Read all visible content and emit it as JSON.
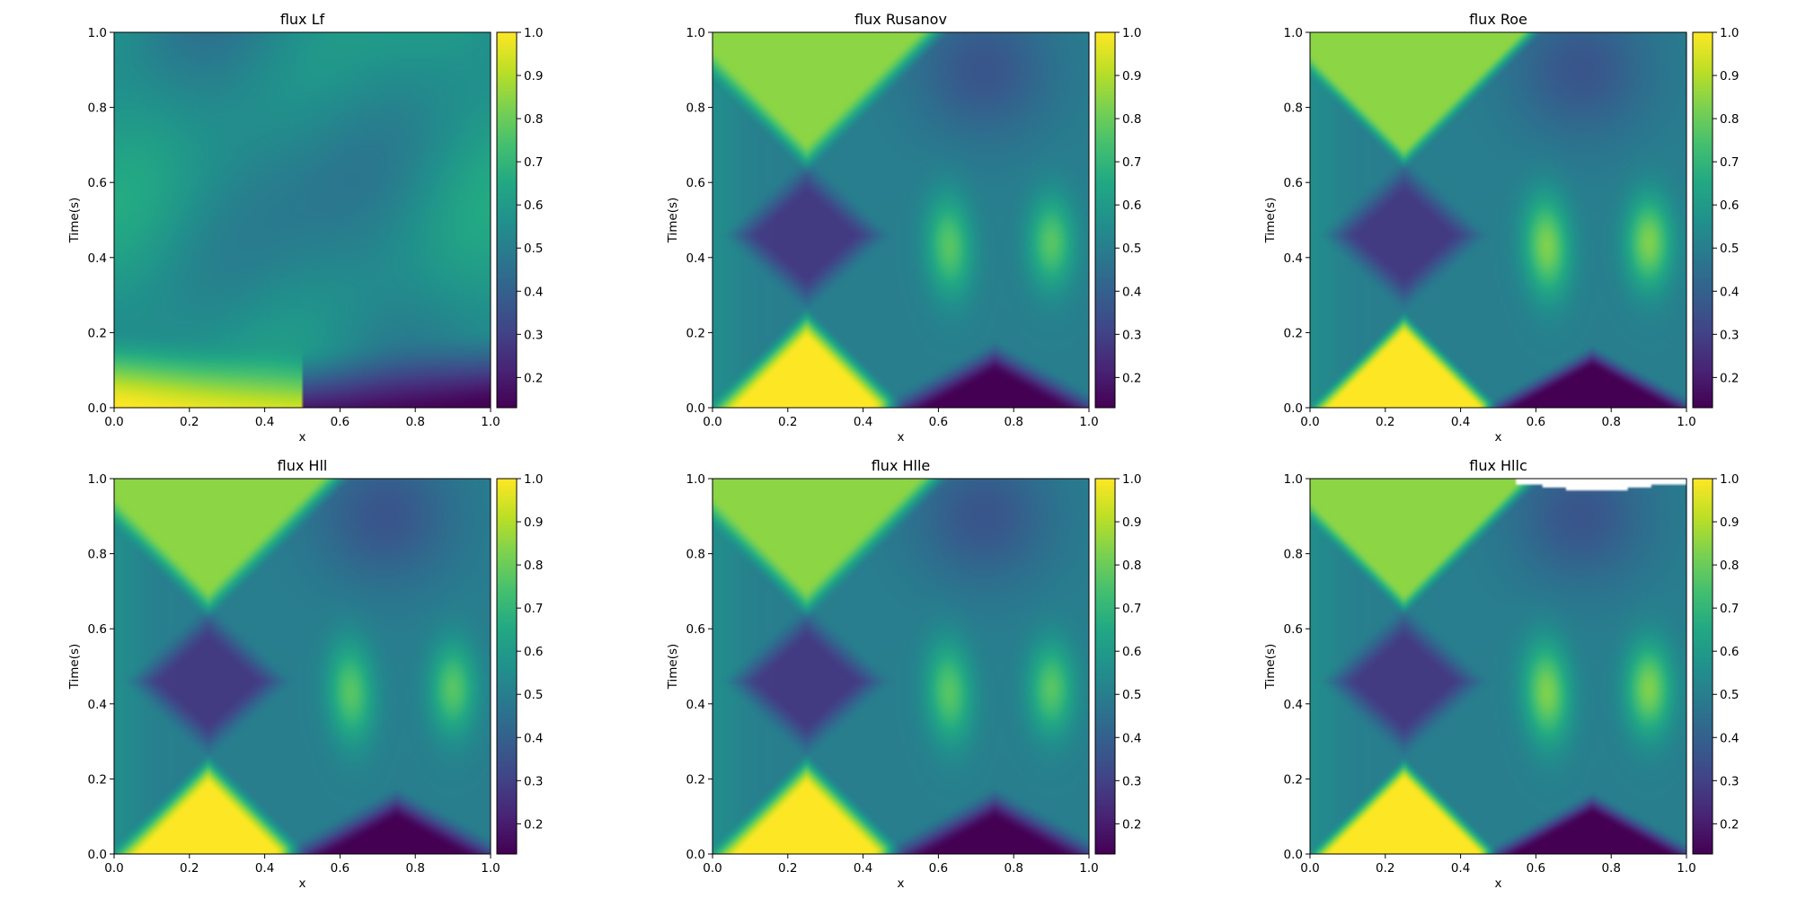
{
  "figure": {
    "background": "#ffffff"
  },
  "chart_data": [
    {
      "type": "heatmap",
      "title": "flux Lf",
      "xlabel": "x",
      "ylabel": "Time(s)",
      "xlim": [
        0,
        1
      ],
      "ylim": [
        0,
        1
      ],
      "xticks": [
        "0.0",
        "0.2",
        "0.4",
        "0.6",
        "0.8",
        "1.0"
      ],
      "yticks": [
        "0.0",
        "0.2",
        "0.4",
        "0.6",
        "0.8",
        "1.0"
      ],
      "colorbar": {
        "colormap": "viridis",
        "range": [
          0.13,
          1.0
        ],
        "ticks": [
          "0.2",
          "0.3",
          "0.4",
          "0.5",
          "0.6",
          "0.7",
          "0.8",
          "0.9",
          "1.0"
        ]
      },
      "scheme": "lf"
    },
    {
      "type": "heatmap",
      "title": "flux Rusanov",
      "xlabel": "x",
      "ylabel": "Time(s)",
      "xlim": [
        0,
        1
      ],
      "ylim": [
        0,
        1
      ],
      "xticks": [
        "0.0",
        "0.2",
        "0.4",
        "0.6",
        "0.8",
        "1.0"
      ],
      "yticks": [
        "0.0",
        "0.2",
        "0.4",
        "0.6",
        "0.8",
        "1.0"
      ],
      "colorbar": {
        "colormap": "viridis",
        "range": [
          0.13,
          1.0
        ],
        "ticks": [
          "0.2",
          "0.3",
          "0.4",
          "0.5",
          "0.6",
          "0.7",
          "0.8",
          "0.9",
          "1.0"
        ]
      },
      "scheme": "rusanov"
    },
    {
      "type": "heatmap",
      "title": "flux Roe",
      "xlabel": "x",
      "ylabel": "Time(s)",
      "xlim": [
        0,
        1
      ],
      "ylim": [
        0,
        1
      ],
      "xticks": [
        "0.0",
        "0.2",
        "0.4",
        "0.6",
        "0.8",
        "1.0"
      ],
      "yticks": [
        "0.0",
        "0.2",
        "0.4",
        "0.6",
        "0.8",
        "1.0"
      ],
      "colorbar": {
        "colormap": "viridis",
        "range": [
          0.13,
          1.0
        ],
        "ticks": [
          "0.2",
          "0.3",
          "0.4",
          "0.5",
          "0.6",
          "0.7",
          "0.8",
          "0.9",
          "1.0"
        ]
      },
      "scheme": "roe"
    },
    {
      "type": "heatmap",
      "title": "flux Hll",
      "xlabel": "x",
      "ylabel": "Time(s)",
      "xlim": [
        0,
        1
      ],
      "ylim": [
        0,
        1
      ],
      "xticks": [
        "0.0",
        "0.2",
        "0.4",
        "0.6",
        "0.8",
        "1.0"
      ],
      "yticks": [
        "0.0",
        "0.2",
        "0.4",
        "0.6",
        "0.8",
        "1.0"
      ],
      "colorbar": {
        "colormap": "viridis",
        "range": [
          0.13,
          1.0
        ],
        "ticks": [
          "0.2",
          "0.3",
          "0.4",
          "0.5",
          "0.6",
          "0.7",
          "0.8",
          "0.9",
          "1.0"
        ]
      },
      "scheme": "hll"
    },
    {
      "type": "heatmap",
      "title": "flux Hlle",
      "xlabel": "x",
      "ylabel": "Time(s)",
      "xlim": [
        0,
        1
      ],
      "ylim": [
        0,
        1
      ],
      "xticks": [
        "0.0",
        "0.2",
        "0.4",
        "0.6",
        "0.8",
        "1.0"
      ],
      "yticks": [
        "0.0",
        "0.2",
        "0.4",
        "0.6",
        "0.8",
        "1.0"
      ],
      "colorbar": {
        "colormap": "viridis",
        "range": [
          0.13,
          1.0
        ],
        "ticks": [
          "0.2",
          "0.3",
          "0.4",
          "0.5",
          "0.6",
          "0.7",
          "0.8",
          "0.9",
          "1.0"
        ]
      },
      "scheme": "hlle"
    },
    {
      "type": "heatmap",
      "title": "flux Hllc",
      "xlabel": "x",
      "ylabel": "Time(s)",
      "xlim": [
        0,
        1
      ],
      "ylim": [
        0,
        1
      ],
      "xticks": [
        "0.0",
        "0.2",
        "0.4",
        "0.6",
        "0.8",
        "1.0"
      ],
      "yticks": [
        "0.0",
        "0.2",
        "0.4",
        "0.6",
        "0.8",
        "1.0"
      ],
      "colorbar": {
        "colormap": "viridis",
        "range": [
          0.13,
          1.0
        ],
        "ticks": [
          "0.2",
          "0.3",
          "0.4",
          "0.5",
          "0.6",
          "0.7",
          "0.8",
          "0.9",
          "1.0"
        ]
      },
      "scheme": "hllc"
    }
  ]
}
